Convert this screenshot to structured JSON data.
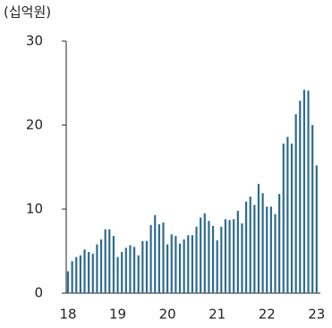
{
  "chart_data": {
    "type": "bar",
    "unit_label": "(십억원)",
    "categories": [
      "18",
      null,
      null,
      null,
      null,
      null,
      null,
      null,
      null,
      null,
      null,
      null,
      "19",
      null,
      null,
      null,
      null,
      null,
      null,
      null,
      null,
      null,
      null,
      null,
      "20",
      null,
      null,
      null,
      null,
      null,
      null,
      null,
      null,
      null,
      null,
      null,
      "21",
      null,
      null,
      null,
      null,
      null,
      null,
      null,
      null,
      null,
      null,
      null,
      "22",
      null,
      null,
      null,
      null,
      null,
      null,
      null,
      null,
      null,
      null,
      null,
      "23"
    ],
    "values": [
      2.6,
      3.8,
      4.3,
      4.5,
      5.2,
      4.9,
      4.7,
      5.8,
      6.4,
      7.6,
      7.6,
      6.8,
      4.3,
      4.9,
      5.4,
      5.7,
      5.5,
      4.5,
      6.2,
      6.2,
      8.1,
      9.3,
      8.2,
      8.4,
      5.8,
      7.0,
      6.8,
      5.9,
      6.4,
      6.9,
      6.9,
      7.9,
      9.0,
      9.5,
      8.6,
      8.0,
      6.3,
      7.9,
      8.8,
      8.7,
      8.8,
      9.8,
      8.3,
      10.9,
      11.5,
      10.5,
      13.0,
      11.9,
      10.3,
      10.3,
      9.4,
      11.8,
      17.8,
      18.6,
      17.8,
      21.3,
      22.9,
      24.2,
      24.1,
      20.0,
      15.2
    ],
    "color": "#2f6b8f",
    "ylim": [
      0,
      30
    ],
    "yticks": [
      0,
      10,
      20,
      30
    ],
    "grid": false
  }
}
